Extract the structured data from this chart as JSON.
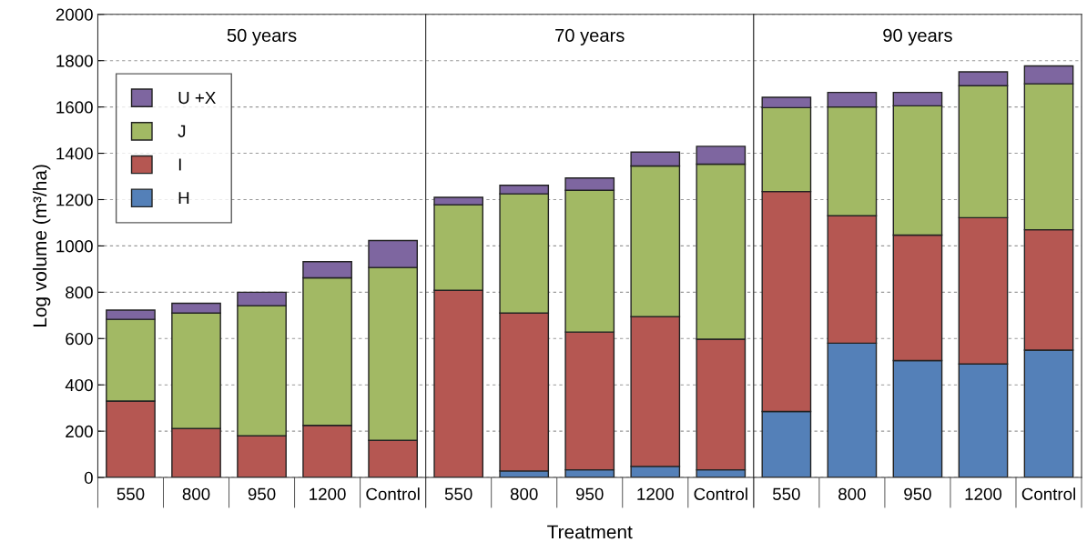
{
  "chart_data": [
    {
      "type": "bar",
      "title": "50 years",
      "ylabel": "Log volume (m³/ha)",
      "stacked": true,
      "categories": [
        "550",
        "800",
        "950",
        "1200",
        "Control"
      ],
      "ylim": [
        0,
        2000
      ],
      "yticks": [
        0,
        200,
        400,
        600,
        800,
        1000,
        1200,
        1400,
        1600,
        1800,
        2000
      ],
      "grid": "y",
      "legend": "top left",
      "series": [
        {
          "name": "H",
          "color": "#5480b8",
          "values": [
            0,
            0,
            0,
            0,
            0
          ]
        },
        {
          "name": "I",
          "color": "#b55752",
          "values": [
            330,
            212,
            180,
            225,
            160
          ]
        },
        {
          "name": "J",
          "color": "#a2b964",
          "values": [
            353,
            498,
            562,
            637,
            747
          ]
        },
        {
          "name": "U +X",
          "color": "#7e66a0",
          "values": [
            40,
            42,
            58,
            70,
            116
          ]
        }
      ]
    },
    {
      "type": "bar",
      "title": "70 years",
      "xlabel": "Treatment",
      "stacked": true,
      "categories": [
        "550",
        "800",
        "950",
        "1200",
        "Control"
      ],
      "ylim": [
        0,
        2000
      ],
      "tick_labels": "x",
      "grid": "y",
      "series": [
        {
          "color": "#5480b8",
          "values": [
            0,
            28,
            33,
            48,
            33
          ]
        },
        {
          "color": "#b55752",
          "values": [
            808,
            682,
            595,
            647,
            564
          ]
        },
        {
          "color": "#a2b964",
          "values": [
            370,
            515,
            612,
            650,
            756
          ]
        },
        {
          "color": "#7e66a0",
          "values": [
            32,
            37,
            53,
            60,
            77
          ]
        }
      ]
    },
    {
      "type": "bar",
      "title": "90 years",
      "stacked": true,
      "categories": [
        "550",
        "800",
        "950",
        "1200",
        "Control"
      ],
      "ylim": [
        0,
        2000
      ],
      "tick_labels": "x",
      "grid": "y",
      "series": [
        {
          "color": "#5480b8",
          "values": [
            285,
            580,
            505,
            490,
            550
          ]
        },
        {
          "color": "#b55752",
          "values": [
            950,
            550,
            542,
            632,
            520
          ]
        },
        {
          "color": "#a2b964",
          "values": [
            362,
            470,
            558,
            570,
            630
          ]
        },
        {
          "color": "#7e66a0",
          "values": [
            45,
            63,
            58,
            60,
            77
          ]
        }
      ]
    }
  ]
}
